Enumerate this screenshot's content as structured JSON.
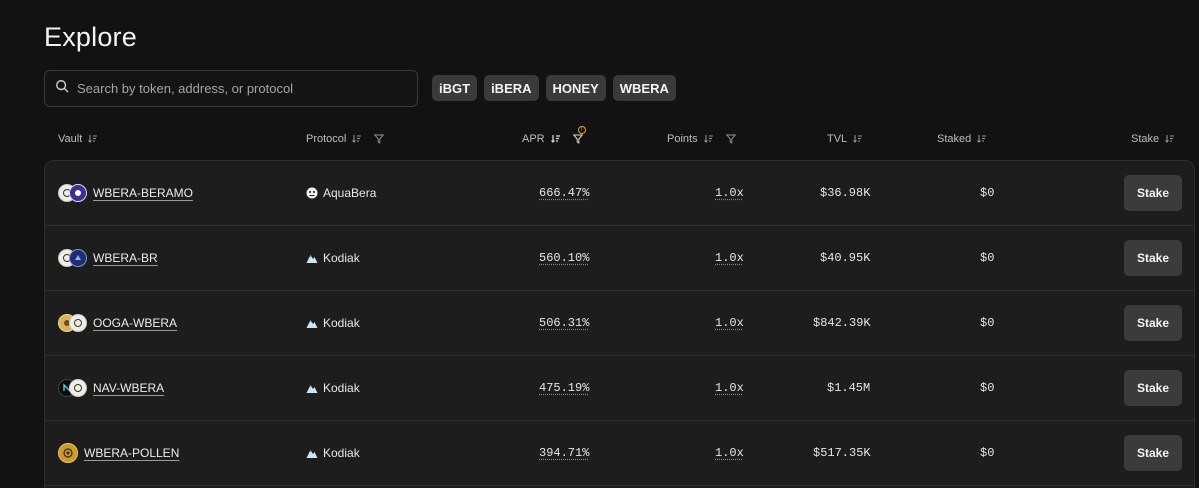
{
  "page": {
    "title": "Explore"
  },
  "search": {
    "placeholder": "Search by token, address, or protocol"
  },
  "chips": [
    "iBGT",
    "iBERA",
    "HONEY",
    "WBERA"
  ],
  "columns": {
    "vault": "Vault",
    "protocol": "Protocol",
    "apr": "APR",
    "points": "Points",
    "tvl": "TVL",
    "staked": "Staked",
    "stake": "Stake"
  },
  "apr_filter_badge": "!",
  "rows": [
    {
      "vault": "WBERA-BERAMO",
      "protocol": "AquaBera",
      "protocol_icon": "aquabera-icon",
      "apr": "666.47%",
      "points": "1.0x",
      "tvl": "$36.98K",
      "staked": "$0",
      "action": "Stake"
    },
    {
      "vault": "WBERA-BR",
      "protocol": "Kodiak",
      "protocol_icon": "kodiak-icon",
      "apr": "560.10%",
      "points": "1.0x",
      "tvl": "$40.95K",
      "staked": "$0",
      "action": "Stake"
    },
    {
      "vault": "OOGA-WBERA",
      "protocol": "Kodiak",
      "protocol_icon": "kodiak-icon",
      "apr": "506.31%",
      "points": "1.0x",
      "tvl": "$842.39K",
      "staked": "$0",
      "action": "Stake"
    },
    {
      "vault": "NAV-WBERA",
      "protocol": "Kodiak",
      "protocol_icon": "kodiak-icon",
      "apr": "475.19%",
      "points": "1.0x",
      "tvl": "$1.45M",
      "staked": "$0",
      "action": "Stake"
    },
    {
      "vault": "WBERA-POLLEN",
      "protocol": "Kodiak",
      "protocol_icon": "kodiak-icon",
      "apr": "394.71%",
      "points": "1.0x",
      "tvl": "$517.35K",
      "staked": "$0",
      "action": "Stake"
    }
  ],
  "colors": {
    "background": "#121212",
    "table": "#1d1d1d",
    "chip": "#3a3a3a",
    "button": "#3b3b3b",
    "accent_badge": "#e0a526"
  }
}
